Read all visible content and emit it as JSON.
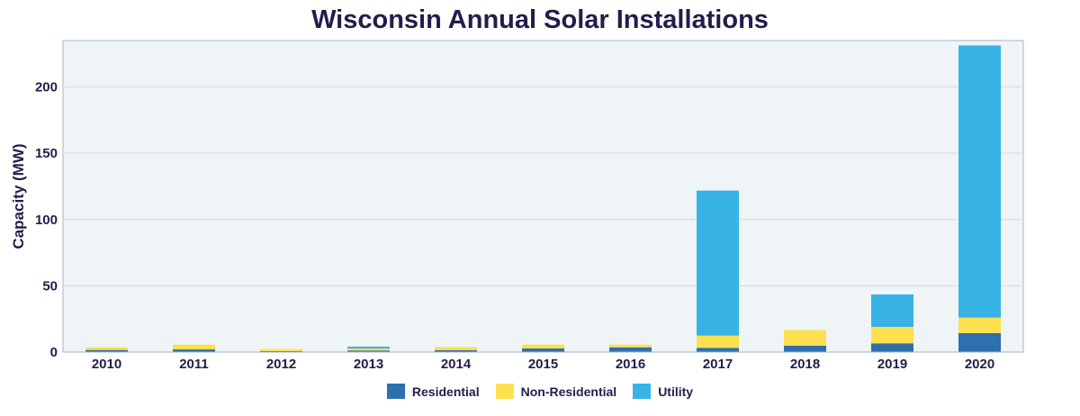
{
  "chart_data": {
    "type": "bar",
    "stacked": true,
    "title": "Wisconsin Annual Solar Installations",
    "xlabel": "",
    "ylabel": "Capacity (MW)",
    "ylim": [
      0,
      235
    ],
    "yticks": [
      0,
      50,
      100,
      150,
      200
    ],
    "grid": true,
    "legend": "bottom",
    "categories": [
      "2010",
      "2011",
      "2012",
      "2013",
      "2014",
      "2015",
      "2016",
      "2017",
      "2018",
      "2019",
      "2020"
    ],
    "series": [
      {
        "name": "Residential",
        "color": "#2e6fad",
        "values": [
          1.6,
          2.0,
          0.7,
          1.2,
          1.5,
          2.7,
          3.6,
          3.2,
          4.8,
          6.6,
          14.3
        ]
      },
      {
        "name": "Non-Residential",
        "color": "#ffe04f",
        "values": [
          2.0,
          3.6,
          1.5,
          1.5,
          2.4,
          2.9,
          2.0,
          9.2,
          11.7,
          12.4,
          11.7
        ]
      },
      {
        "name": "Utility",
        "color": "#39b3e5",
        "values": [
          0,
          0,
          0,
          1.4,
          0,
          0,
          0,
          109.4,
          0,
          24.5,
          205.3
        ]
      }
    ]
  }
}
